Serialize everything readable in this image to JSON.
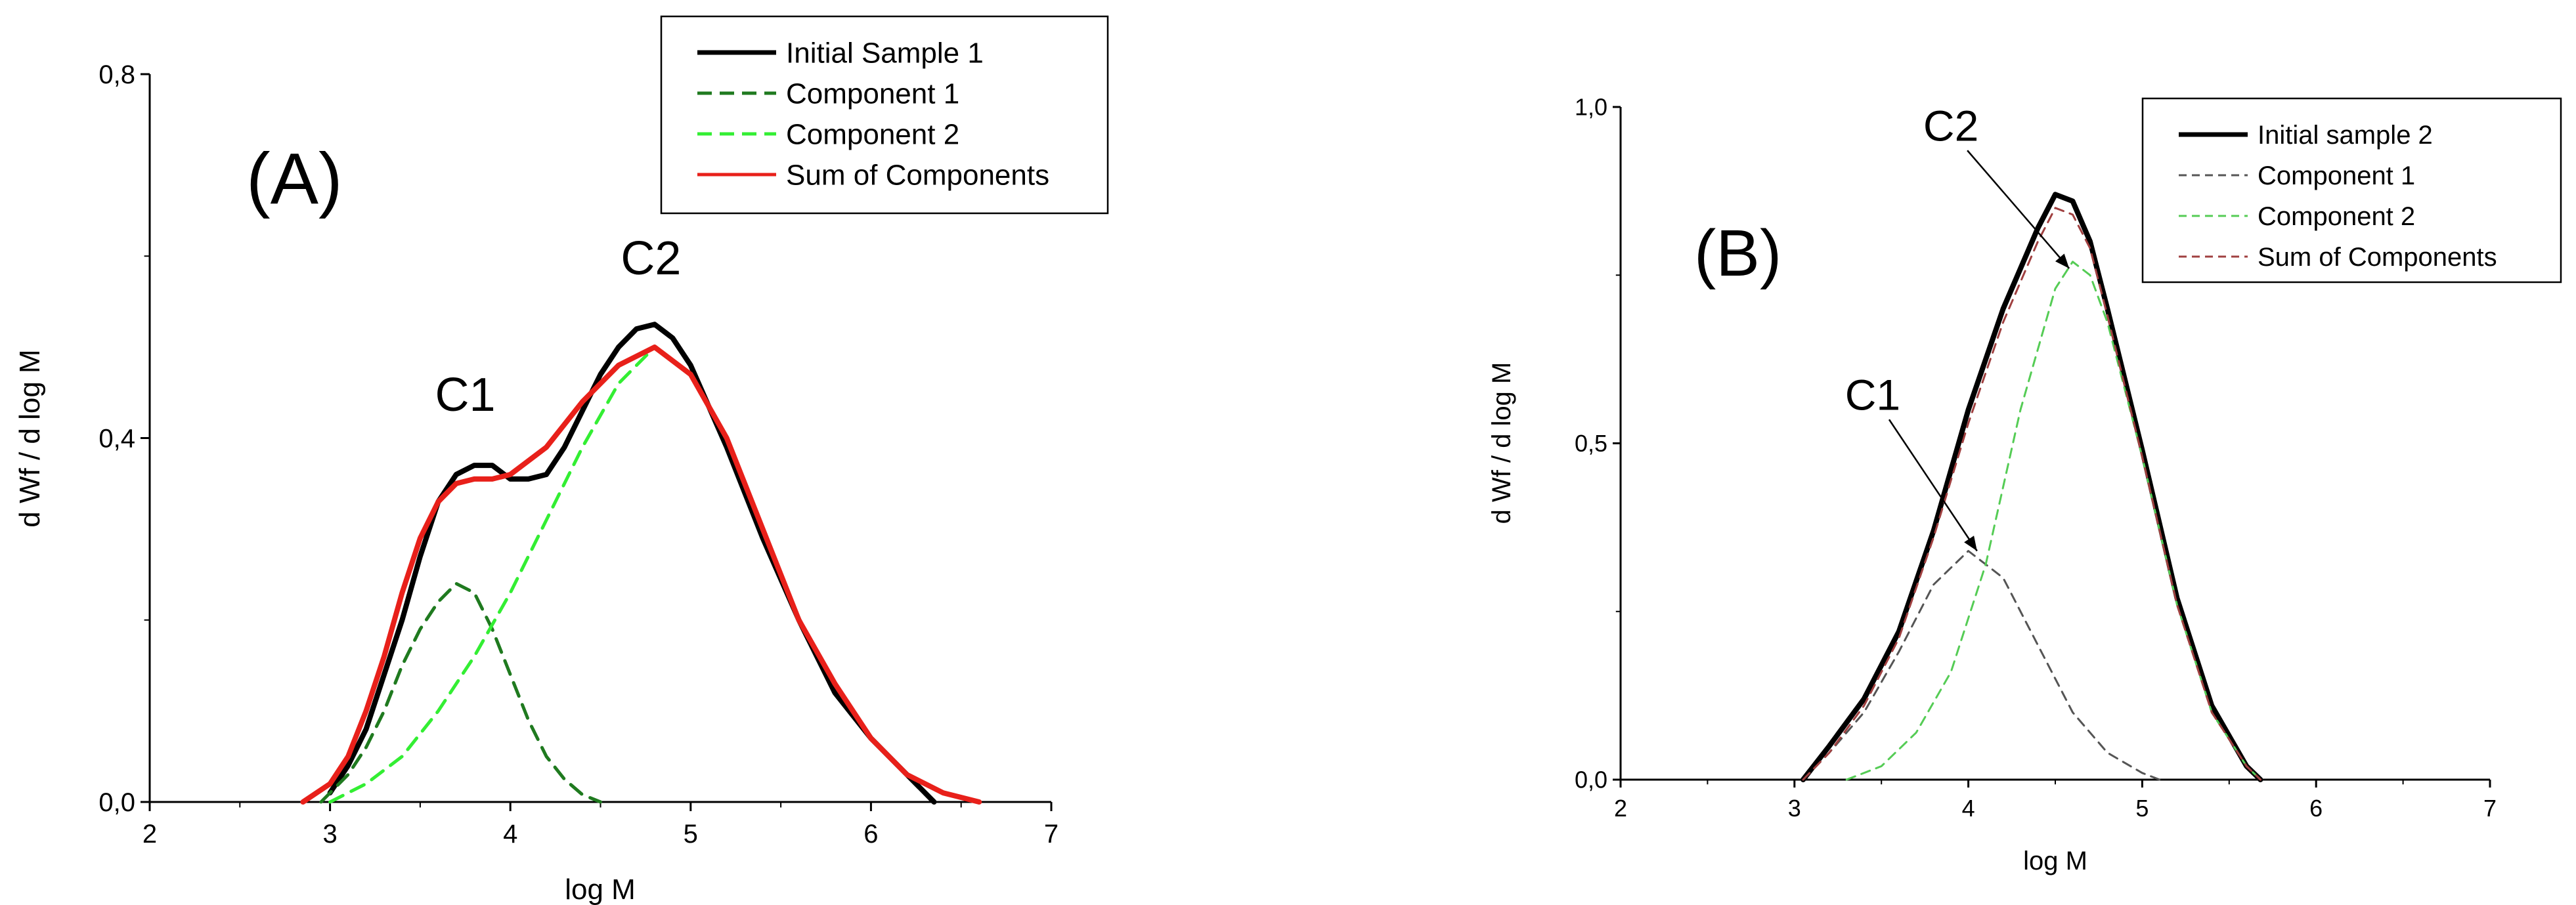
{
  "chart_data": [
    {
      "type": "line",
      "panel_label": "(A)",
      "xlabel": "log M",
      "ylabel": "d Wf / d log M",
      "xlim": [
        2,
        7
      ],
      "ylim": [
        0,
        0.8
      ],
      "x_ticks": [
        "2",
        "3",
        "4",
        "5",
        "6",
        "7"
      ],
      "y_ticks": [
        "0,0",
        "0,4",
        "0,8"
      ],
      "grid": false,
      "legend_position": "top-right",
      "annotations": [
        {
          "text": "C1",
          "x": 3.75,
          "y": 0.43
        },
        {
          "text": "C2",
          "x": 4.78,
          "y": 0.58
        }
      ],
      "series": [
        {
          "name": "Initial Sample 1",
          "color": "#000000",
          "style": "solid",
          "x": [
            3.0,
            3.1,
            3.2,
            3.3,
            3.4,
            3.5,
            3.6,
            3.7,
            3.8,
            3.9,
            4.0,
            4.1,
            4.2,
            4.3,
            4.4,
            4.5,
            4.6,
            4.7,
            4.8,
            4.9,
            5.0,
            5.2,
            5.4,
            5.6,
            5.8,
            6.0,
            6.2,
            6.35
          ],
          "y": [
            0.01,
            0.04,
            0.08,
            0.14,
            0.2,
            0.27,
            0.33,
            0.36,
            0.37,
            0.37,
            0.355,
            0.355,
            0.36,
            0.39,
            0.43,
            0.47,
            0.5,
            0.52,
            0.525,
            0.51,
            0.48,
            0.39,
            0.29,
            0.2,
            0.12,
            0.07,
            0.03,
            0.0
          ]
        },
        {
          "name": "Component 1",
          "color": "#1f7a1f",
          "style": "dashed",
          "x": [
            2.95,
            3.1,
            3.2,
            3.3,
            3.4,
            3.5,
            3.6,
            3.7,
            3.8,
            3.9,
            4.0,
            4.1,
            4.2,
            4.3,
            4.4,
            4.5
          ],
          "y": [
            0.0,
            0.03,
            0.06,
            0.1,
            0.15,
            0.19,
            0.22,
            0.24,
            0.23,
            0.19,
            0.14,
            0.09,
            0.05,
            0.025,
            0.008,
            0.0
          ]
        },
        {
          "name": "Component 2",
          "color": "#33ee33",
          "style": "dashed",
          "x": [
            3.0,
            3.2,
            3.4,
            3.6,
            3.8,
            4.0,
            4.2,
            4.4,
            4.6,
            4.8,
            5.0,
            5.2,
            5.4,
            5.6
          ],
          "y": [
            0.0,
            0.02,
            0.05,
            0.1,
            0.16,
            0.23,
            0.31,
            0.39,
            0.46,
            0.5,
            0.47,
            0.4,
            0.3,
            0.2
          ]
        },
        {
          "name": "Sum of Components",
          "color": "#e8201a",
          "style": "solid",
          "x": [
            2.85,
            3.0,
            3.1,
            3.2,
            3.3,
            3.4,
            3.5,
            3.6,
            3.7,
            3.8,
            3.9,
            4.0,
            4.2,
            4.4,
            4.6,
            4.8,
            5.0,
            5.2,
            5.4,
            5.6,
            5.8,
            6.0,
            6.2,
            6.4,
            6.6
          ],
          "y": [
            0.0,
            0.02,
            0.05,
            0.1,
            0.16,
            0.23,
            0.29,
            0.33,
            0.35,
            0.355,
            0.355,
            0.36,
            0.39,
            0.44,
            0.48,
            0.5,
            0.47,
            0.4,
            0.3,
            0.2,
            0.13,
            0.07,
            0.03,
            0.01,
            0.0
          ]
        }
      ]
    },
    {
      "type": "line",
      "panel_label": "(B)",
      "xlabel": "log M",
      "ylabel": "d Wf / d log M",
      "xlim": [
        2,
        7
      ],
      "ylim": [
        0,
        1.0
      ],
      "x_ticks": [
        "2",
        "3",
        "4",
        "5",
        "6",
        "7"
      ],
      "y_ticks": [
        "0,0",
        "0,5",
        "1,0"
      ],
      "grid": false,
      "legend_position": "top-right",
      "annotations": [
        {
          "text": "C1",
          "x": 3.45,
          "y": 0.55,
          "arrow_to": [
            4.05,
            0.34
          ]
        },
        {
          "text": "C2",
          "x": 3.9,
          "y": 0.95,
          "arrow_to": [
            4.58,
            0.76
          ]
        }
      ],
      "series": [
        {
          "name": "Initial sample 2",
          "color": "#000000",
          "style": "solid",
          "x": [
            3.05,
            3.2,
            3.4,
            3.6,
            3.8,
            4.0,
            4.2,
            4.4,
            4.5,
            4.6,
            4.7,
            4.8,
            5.0,
            5.2,
            5.4,
            5.6,
            5.68
          ],
          "y": [
            0.0,
            0.05,
            0.12,
            0.22,
            0.37,
            0.55,
            0.7,
            0.82,
            0.87,
            0.86,
            0.8,
            0.7,
            0.49,
            0.27,
            0.11,
            0.02,
            0.0
          ]
        },
        {
          "name": "Component 1",
          "color": "#555555",
          "style": "dashed",
          "x": [
            3.05,
            3.2,
            3.4,
            3.6,
            3.8,
            4.0,
            4.2,
            4.4,
            4.6,
            4.8,
            5.0,
            5.1
          ],
          "y": [
            0.0,
            0.04,
            0.1,
            0.19,
            0.29,
            0.34,
            0.3,
            0.2,
            0.1,
            0.04,
            0.01,
            0.0
          ]
        },
        {
          "name": "Component 2",
          "color": "#55cc55",
          "style": "dashed",
          "x": [
            3.3,
            3.5,
            3.7,
            3.9,
            4.1,
            4.3,
            4.5,
            4.6,
            4.7,
            4.8,
            5.0,
            5.2,
            5.4,
            5.6,
            5.68
          ],
          "y": [
            0.0,
            0.02,
            0.07,
            0.16,
            0.32,
            0.55,
            0.73,
            0.77,
            0.75,
            0.68,
            0.48,
            0.26,
            0.1,
            0.02,
            0.0
          ]
        },
        {
          "name": "Sum of Components",
          "color": "#a04040",
          "style": "dashed",
          "x": [
            3.05,
            3.2,
            3.4,
            3.6,
            3.8,
            4.0,
            4.2,
            4.4,
            4.5,
            4.6,
            4.7,
            4.8,
            5.0,
            5.2,
            5.4,
            5.6,
            5.68
          ],
          "y": [
            0.0,
            0.04,
            0.11,
            0.21,
            0.36,
            0.53,
            0.68,
            0.8,
            0.85,
            0.84,
            0.79,
            0.69,
            0.48,
            0.26,
            0.1,
            0.02,
            0.0
          ]
        }
      ]
    }
  ]
}
